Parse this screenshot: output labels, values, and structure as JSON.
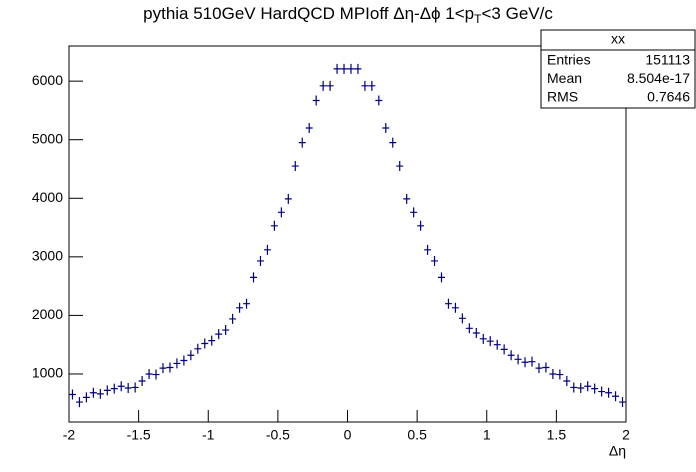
{
  "chart_data": {
    "type": "histogram",
    "title": [
      "pythia 510GeV HardQCD MPIoff Δη-Δϕ 1<p",
      "T",
      "<3 GeV/c"
    ],
    "x_label": "Δη",
    "color": "#000080",
    "bins": [
      -2,
      -1.95,
      -1.9,
      -1.85,
      -1.8,
      -1.75,
      -1.7,
      -1.65,
      -1.6,
      -1.55,
      -1.5,
      -1.45,
      -1.4,
      -1.35,
      -1.3,
      -1.25,
      -1.2,
      -1.15,
      -1.1,
      -1.05,
      -1,
      -0.95,
      -0.9,
      -0.85,
      -0.8,
      -0.75,
      -0.7,
      -0.65,
      -0.6,
      -0.55,
      -0.5,
      -0.45,
      -0.4,
      -0.35,
      -0.3,
      -0.25,
      -0.2,
      -0.15,
      -0.1,
      -0.05,
      0,
      0.05,
      0.1,
      0.15,
      0.2,
      0.25,
      0.3,
      0.35,
      0.4,
      0.45,
      0.5,
      0.55,
      0.6,
      0.65,
      0.7,
      0.75,
      0.8,
      0.85,
      0.9,
      0.95,
      1,
      1.05,
      1.1,
      1.15,
      1.2,
      1.25,
      1.3,
      1.35,
      1.4,
      1.45,
      1.5,
      1.55,
      1.6,
      1.65,
      1.7,
      1.75,
      1.8,
      1.85,
      1.9,
      1.95,
      2
    ],
    "values": [
      650,
      520,
      600,
      680,
      660,
      720,
      750,
      790,
      760,
      770,
      880,
      1000,
      990,
      1100,
      1110,
      1180,
      1230,
      1320,
      1430,
      1520,
      1570,
      1680,
      1750,
      1940,
      2130,
      2200,
      2650,
      2930,
      3120,
      3530,
      3760,
      3990,
      4550,
      4950,
      5200,
      5670,
      5920,
      5920,
      6210,
      6210,
      6210,
      6210,
      5920,
      5920,
      5670,
      5200,
      4950,
      4550,
      3990,
      3760,
      3530,
      3120,
      2930,
      2650,
      2200,
      2130,
      1950,
      1780,
      1700,
      1600,
      1560,
      1500,
      1420,
      1320,
      1250,
      1200,
      1210,
      1100,
      1110,
      1000,
      990,
      880,
      770,
      760,
      790,
      750,
      700,
      680,
      620,
      520,
      640
    ],
    "xlim": [
      -2,
      2
    ],
    "xticks": [
      -2,
      -1.5,
      -1,
      -0.5,
      0,
      0.5,
      1,
      1.5,
      2
    ],
    "ylim": [
      180,
      6600
    ],
    "yticks": [
      1000,
      2000,
      3000,
      4000,
      5000,
      6000
    ],
    "stats": {
      "title": "xx",
      "rows": [
        [
          "Entries",
          "151113"
        ],
        [
          "Mean",
          "8.504e-17"
        ],
        [
          "RMS",
          "0.7646"
        ]
      ]
    }
  }
}
